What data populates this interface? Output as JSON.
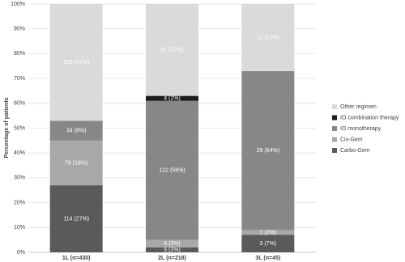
{
  "chart_data": {
    "type": "stacked_bar",
    "y_label": "Percentage of patients",
    "categories": [
      "1L (n=430)",
      "2L (n=218)",
      "3L (n=45)"
    ],
    "series": [
      {
        "name": "Carbo-Gem",
        "color": "#5a5a5a",
        "values": [
          27,
          2,
          7
        ],
        "value_labels": [
          "114 (27%)",
          "5 (2%)",
          "3 (7%)"
        ]
      },
      {
        "name": "Cis-Gem",
        "color": "#a8a8a8",
        "values": [
          18,
          3,
          2
        ],
        "value_labels": [
          "79 (18%)",
          "6 (3%)",
          "1 (2%)"
        ]
      },
      {
        "name": "IO monotherapy",
        "color": "#878787",
        "values": [
          8,
          56,
          64
        ],
        "value_labels": [
          "34 (8%)",
          "122 (56%)",
          "29 (64%)"
        ]
      },
      {
        "name": "IO combination therapy",
        "color": "#1c1c1c",
        "values": [
          null,
          2,
          null
        ],
        "value_labels": [
          null,
          "4 (2%)",
          null
        ]
      },
      {
        "name": "Other regimen",
        "color": "#dadada",
        "values": [
          47,
          37,
          27
        ],
        "value_labels": [
          "203 (47%)",
          "81 (37%)",
          "12 (27%)"
        ]
      }
    ],
    "ylim": [
      0,
      100
    ],
    "yticks": [
      {
        "value": 0,
        "label": "0%"
      },
      {
        "value": 10,
        "label": "10%"
      },
      {
        "value": 20,
        "label": "20%"
      },
      {
        "value": 30,
        "label": "30%"
      },
      {
        "value": 40,
        "label": "40%"
      },
      {
        "value": 50,
        "label": "50%"
      },
      {
        "value": 60,
        "label": "60%"
      },
      {
        "value": 70,
        "label": "70%"
      },
      {
        "value": 80,
        "label": "80%"
      },
      {
        "value": 90,
        "label": "90%"
      },
      {
        "value": 100,
        "label": "100%"
      }
    ],
    "grid": true,
    "legend": "right"
  }
}
